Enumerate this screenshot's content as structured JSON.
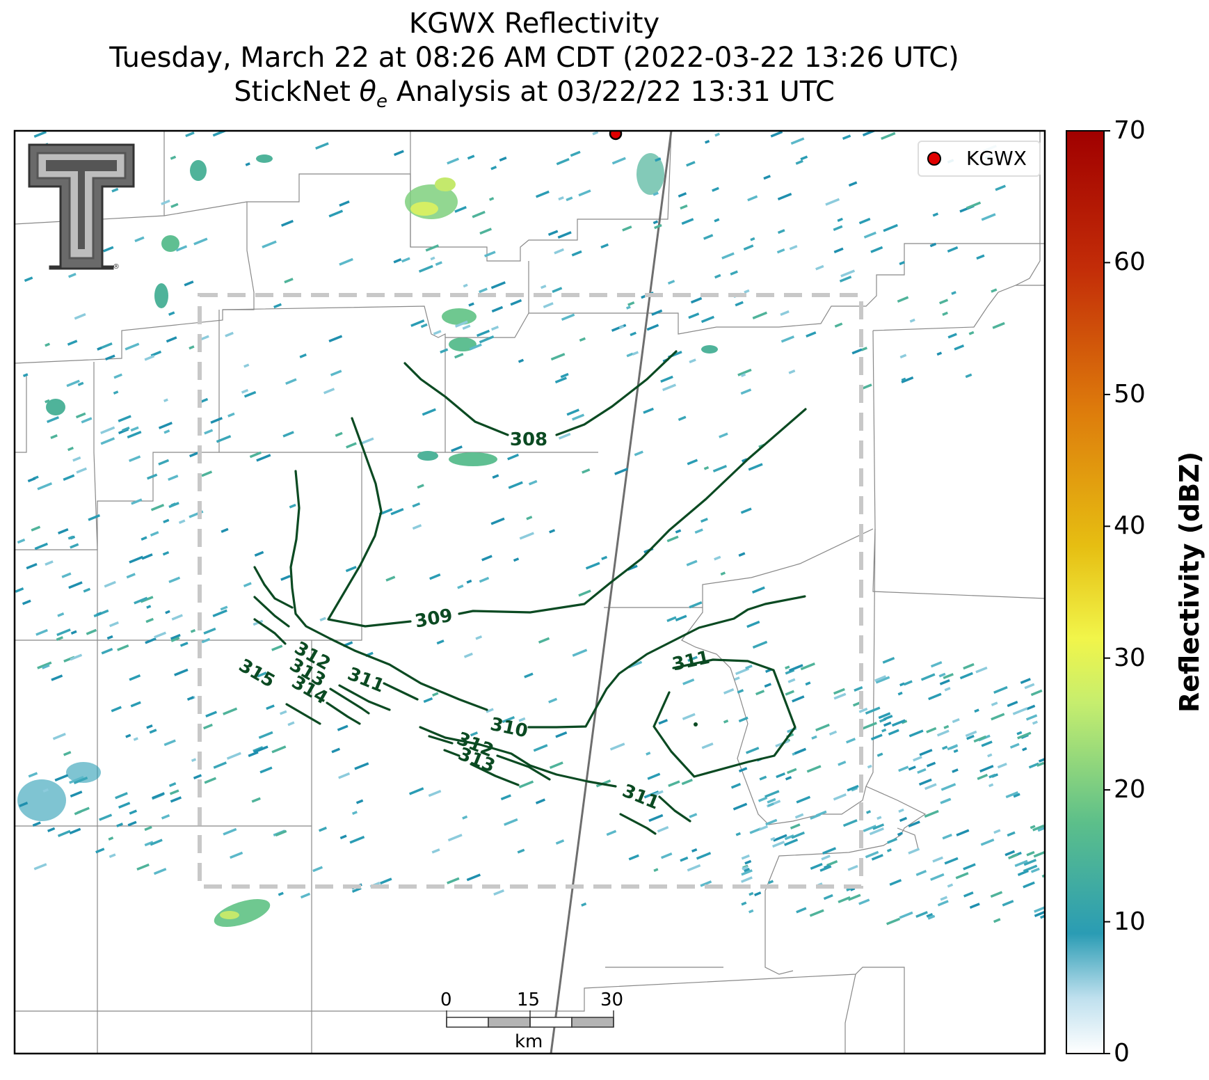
{
  "title": {
    "line1": "KGWX Reflectivity",
    "line2": "Tuesday, March 22 at 08:26 AM CDT (2022-03-22 13:26 UTC)",
    "line3_prefix": "StickNet ",
    "line3_symbol": "θ",
    "line3_sub": "e",
    "line3_suffix": " Analysis at 03/22/22 13:31 UTC"
  },
  "legend": {
    "label": "KGWX",
    "marker_color": "#e00000"
  },
  "colorbar": {
    "title": "Reflectivity (dBZ)",
    "ticks": [
      "0",
      "10",
      "20",
      "30",
      "40",
      "50",
      "60",
      "70"
    ],
    "range": [
      0,
      70
    ]
  },
  "scale_bar": {
    "ticks": [
      "0",
      "15",
      "30"
    ],
    "unit": "km"
  },
  "contours": {
    "color": "#0b4a22",
    "labels": [
      "308",
      "309",
      "310",
      "311",
      "311",
      "311",
      "312",
      "313",
      "312",
      "313",
      "314",
      "315"
    ]
  },
  "colors": {
    "contour": "#0b4a22",
    "analysis_box": "#c8c8c8",
    "county_lines": "#888888",
    "radar_site": "#e00000"
  }
}
